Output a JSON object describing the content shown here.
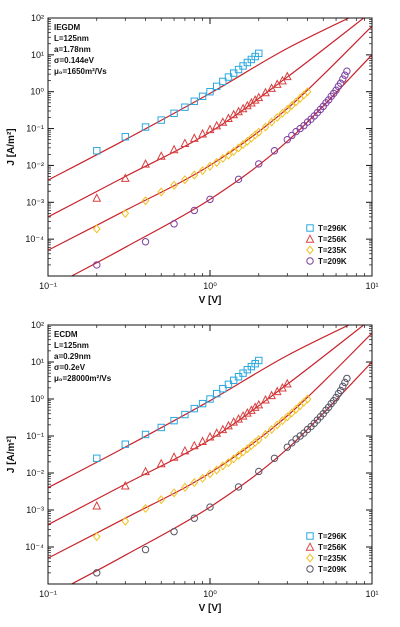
{
  "figure": {
    "panels_count": 2
  },
  "chart_data": [
    {
      "type": "scatter",
      "title": "",
      "xlabel": "V [V]",
      "ylabel": "J [A/m²]",
      "x_scale": "log",
      "y_scale": "log",
      "xlim": [
        0.1,
        10
      ],
      "ylim": [
        1e-05,
        100
      ],
      "x_tick_labels": [
        "10⁻¹",
        "10⁰",
        "10¹"
      ],
      "y_tick_labels": [
        "10²",
        "10¹",
        "10⁰",
        "10⁻¹",
        "10⁻²",
        "10⁻³",
        "10⁻⁴"
      ],
      "x_ticks": [
        0.1,
        1,
        10
      ],
      "y_ticks": [
        100,
        10,
        1,
        0.1,
        0.01,
        0.001,
        0.0001
      ],
      "model_lines": [
        "IEGDM",
        "L=125nm",
        "a=1.78nm",
        "σ=0.144eV",
        "μ₀=1650m²/Vs"
      ],
      "legend_position": "bottom-right",
      "series": [
        {
          "name": "T=296K",
          "marker": "square",
          "color": "#29a8e0",
          "x": [
            0.2,
            0.3,
            0.4,
            0.5,
            0.6,
            0.7,
            0.8,
            0.9,
            1.0,
            1.1,
            1.2,
            1.3,
            1.4,
            1.5,
            1.6,
            1.7,
            1.8,
            1.9,
            2.0
          ],
          "y": [
            0.025,
            0.06,
            0.11,
            0.17,
            0.26,
            0.38,
            0.55,
            0.75,
            1.0,
            1.4,
            1.9,
            2.5,
            3.2,
            4.0,
            5.0,
            6.2,
            7.5,
            9.0,
            11
          ]
        },
        {
          "name": "T=256K",
          "marker": "triangle",
          "color": "#d94040",
          "x": [
            0.2,
            0.3,
            0.4,
            0.5,
            0.6,
            0.7,
            0.8,
            0.9,
            1.0,
            1.1,
            1.2,
            1.3,
            1.4,
            1.5,
            1.6,
            1.7,
            1.8,
            1.9,
            2.0,
            2.2,
            2.4,
            2.6,
            2.8,
            3.0
          ],
          "y": [
            0.0013,
            0.0045,
            0.011,
            0.018,
            0.027,
            0.04,
            0.055,
            0.072,
            0.095,
            0.12,
            0.15,
            0.19,
            0.24,
            0.29,
            0.35,
            0.42,
            0.5,
            0.6,
            0.7,
            0.95,
            1.25,
            1.6,
            2.0,
            2.6
          ]
        },
        {
          "name": "T=235K",
          "marker": "diamond",
          "color": "#f0c020",
          "x": [
            0.2,
            0.3,
            0.4,
            0.5,
            0.6,
            0.7,
            0.8,
            0.9,
            1.0,
            1.1,
            1.2,
            1.3,
            1.4,
            1.5,
            1.6,
            1.7,
            1.8,
            1.9,
            2.0,
            2.2,
            2.4,
            2.6,
            2.8,
            3.0,
            3.2,
            3.4,
            3.6,
            3.8,
            4.0
          ],
          "y": [
            0.00019,
            0.0005,
            0.0011,
            0.0019,
            0.0029,
            0.0041,
            0.0055,
            0.0072,
            0.0095,
            0.012,
            0.0155,
            0.019,
            0.024,
            0.03,
            0.037,
            0.045,
            0.055,
            0.067,
            0.08,
            0.11,
            0.15,
            0.2,
            0.26,
            0.33,
            0.42,
            0.53,
            0.66,
            0.82,
            1.0
          ]
        },
        {
          "name": "T=209K",
          "marker": "circle",
          "color": "#7b3fa0",
          "x": [
            0.2,
            0.4,
            0.6,
            0.8,
            1.0,
            1.5,
            2.0,
            2.5,
            3.0,
            3.2,
            3.4,
            3.6,
            3.8,
            4.0,
            4.2,
            4.4,
            4.6,
            4.8,
            5.0,
            5.2,
            5.4,
            5.6,
            5.8,
            6.0,
            6.2,
            6.4,
            6.6,
            6.8,
            7.0
          ],
          "y": [
            2e-05,
            8.5e-05,
            0.00026,
            0.0006,
            0.0012,
            0.0042,
            0.011,
            0.025,
            0.05,
            0.065,
            0.083,
            0.1,
            0.12,
            0.15,
            0.18,
            0.22,
            0.27,
            0.33,
            0.4,
            0.5,
            0.6,
            0.75,
            0.9,
            1.1,
            1.4,
            1.7,
            2.2,
            2.8,
            3.6
          ]
        }
      ],
      "fit_lines": [
        {
          "x": [
            0.1,
            0.3,
            1,
            3,
            10
          ],
          "y": [
            0.004,
            0.05,
            0.9,
            15,
            200
          ]
        },
        {
          "x": [
            0.1,
            0.3,
            1,
            3,
            10
          ],
          "y": [
            0.0004,
            0.005,
            0.08,
            2.5,
            150
          ]
        },
        {
          "x": [
            0.1,
            0.3,
            1,
            3,
            10
          ],
          "y": [
            5e-05,
            0.0006,
            0.01,
            0.35,
            60
          ]
        },
        {
          "x": [
            0.14,
            0.3,
            1,
            3,
            10
          ],
          "y": [
            1e-05,
            6e-05,
            0.0012,
            0.045,
            10
          ]
        }
      ]
    },
    {
      "type": "scatter",
      "title": "",
      "xlabel": "V [V]",
      "ylabel": "J [A/m²]",
      "x_scale": "log",
      "y_scale": "log",
      "xlim": [
        0.1,
        10
      ],
      "ylim": [
        1e-05,
        100
      ],
      "x_tick_labels": [
        "10⁻¹",
        "10⁰",
        "10¹"
      ],
      "y_tick_labels": [
        "10²",
        "10¹",
        "10⁰",
        "10⁻¹",
        "10⁻²",
        "10⁻³",
        "10⁻⁴"
      ],
      "x_ticks": [
        0.1,
        1,
        10
      ],
      "y_ticks": [
        100,
        10,
        1,
        0.1,
        0.01,
        0.001,
        0.0001
      ],
      "model_lines": [
        "ECDM",
        "L=125nm",
        "a=0.29nm",
        "σ=0.2eV",
        "μ₀=28000m²/Vs"
      ],
      "legend_position": "bottom-right",
      "series": [
        {
          "name": "T=296K",
          "marker": "square",
          "color": "#29a8e0",
          "x": [
            0.2,
            0.3,
            0.4,
            0.5,
            0.6,
            0.7,
            0.8,
            0.9,
            1.0,
            1.1,
            1.2,
            1.3,
            1.4,
            1.5,
            1.6,
            1.7,
            1.8,
            1.9,
            2.0
          ],
          "y": [
            0.025,
            0.06,
            0.11,
            0.17,
            0.26,
            0.38,
            0.55,
            0.75,
            1.0,
            1.4,
            1.9,
            2.5,
            3.2,
            4.0,
            5.0,
            6.2,
            7.5,
            9.0,
            11
          ]
        },
        {
          "name": "T=256K",
          "marker": "triangle",
          "color": "#d94040",
          "x": [
            0.2,
            0.3,
            0.4,
            0.5,
            0.6,
            0.7,
            0.8,
            0.9,
            1.0,
            1.1,
            1.2,
            1.3,
            1.4,
            1.5,
            1.6,
            1.7,
            1.8,
            1.9,
            2.0,
            2.2,
            2.4,
            2.6,
            2.8,
            3.0
          ],
          "y": [
            0.0013,
            0.0045,
            0.011,
            0.018,
            0.027,
            0.04,
            0.055,
            0.072,
            0.095,
            0.12,
            0.15,
            0.19,
            0.24,
            0.29,
            0.35,
            0.42,
            0.5,
            0.6,
            0.7,
            0.95,
            1.25,
            1.6,
            2.0,
            2.6
          ]
        },
        {
          "name": "T=235K",
          "marker": "diamond",
          "color": "#f0c020",
          "x": [
            0.2,
            0.3,
            0.4,
            0.5,
            0.6,
            0.7,
            0.8,
            0.9,
            1.0,
            1.1,
            1.2,
            1.3,
            1.4,
            1.5,
            1.6,
            1.7,
            1.8,
            1.9,
            2.0,
            2.2,
            2.4,
            2.6,
            2.8,
            3.0,
            3.2,
            3.4,
            3.6,
            3.8,
            4.0
          ],
          "y": [
            0.00019,
            0.0005,
            0.0011,
            0.0019,
            0.0029,
            0.0041,
            0.0055,
            0.0072,
            0.0095,
            0.012,
            0.0155,
            0.019,
            0.024,
            0.03,
            0.037,
            0.045,
            0.055,
            0.067,
            0.08,
            0.11,
            0.15,
            0.2,
            0.26,
            0.33,
            0.42,
            0.53,
            0.66,
            0.82,
            1.0
          ]
        },
        {
          "name": "T=209K",
          "marker": "circle",
          "color": "#555566",
          "x": [
            0.2,
            0.4,
            0.6,
            0.8,
            1.0,
            1.5,
            2.0,
            2.5,
            3.0,
            3.2,
            3.4,
            3.6,
            3.8,
            4.0,
            4.2,
            4.4,
            4.6,
            4.8,
            5.0,
            5.2,
            5.4,
            5.6,
            5.8,
            6.0,
            6.2,
            6.4,
            6.6,
            6.8,
            7.0
          ],
          "y": [
            2e-05,
            8.5e-05,
            0.00026,
            0.0006,
            0.0012,
            0.0042,
            0.011,
            0.025,
            0.05,
            0.065,
            0.083,
            0.1,
            0.12,
            0.15,
            0.18,
            0.22,
            0.27,
            0.33,
            0.4,
            0.5,
            0.6,
            0.75,
            0.9,
            1.1,
            1.4,
            1.7,
            2.2,
            2.8,
            3.6
          ]
        }
      ],
      "fit_lines": [
        {
          "x": [
            0.1,
            0.3,
            1,
            3,
            10
          ],
          "y": [
            0.004,
            0.05,
            0.9,
            15,
            200
          ]
        },
        {
          "x": [
            0.1,
            0.3,
            1,
            3,
            10
          ],
          "y": [
            0.0004,
            0.005,
            0.08,
            2.5,
            150
          ]
        },
        {
          "x": [
            0.1,
            0.3,
            1,
            3,
            10
          ],
          "y": [
            5e-05,
            0.0006,
            0.01,
            0.35,
            60
          ]
        },
        {
          "x": [
            0.14,
            0.3,
            1,
            3,
            10
          ],
          "y": [
            1e-05,
            6e-05,
            0.0012,
            0.045,
            10
          ]
        }
      ]
    }
  ],
  "colors": {
    "fit_line": "#c8232c",
    "frame": "#111111"
  }
}
